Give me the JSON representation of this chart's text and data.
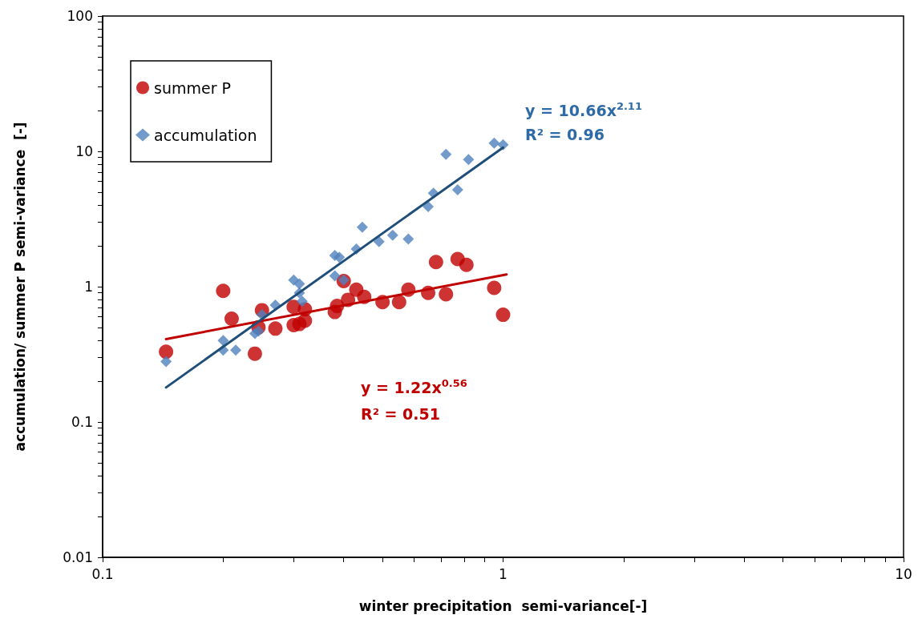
{
  "chart_data": {
    "type": "scatter",
    "xlabel": "winter precipitation  semi-variance[-]",
    "ylabel": "accumulation/ summer P semi-variance  [-]",
    "log": "xy",
    "grid": false,
    "legend": "top left",
    "xlim": [
      0.1,
      10
    ],
    "xticks": [
      0.1,
      1,
      10
    ],
    "ylim": [
      0.01,
      100
    ],
    "yticks": [
      0.01,
      0.1,
      1,
      10,
      100
    ],
    "series": [
      {
        "name": "summer P",
        "color": "#c00000",
        "marker": "circle",
        "x": [
          0.144,
          0.2,
          0.21,
          0.24,
          0.245,
          0.25,
          0.27,
          0.3,
          0.3,
          0.31,
          0.32,
          0.32,
          0.38,
          0.385,
          0.4,
          0.41,
          0.43,
          0.45,
          0.5,
          0.55,
          0.58,
          0.65,
          0.68,
          0.72,
          0.77,
          0.81,
          0.95,
          1.0
        ],
        "values": [
          0.33,
          0.93,
          0.58,
          0.32,
          0.5,
          0.67,
          0.49,
          0.71,
          0.52,
          0.53,
          0.56,
          0.68,
          0.65,
          0.72,
          1.1,
          0.8,
          0.95,
          0.84,
          0.77,
          0.77,
          0.95,
          0.9,
          1.52,
          0.88,
          1.6,
          1.45,
          0.98,
          0.62
        ]
      },
      {
        "name": "accumulation",
        "color": "#4f81bd",
        "marker": "diamond",
        "x": [
          0.144,
          0.2,
          0.2,
          0.215,
          0.24,
          0.245,
          0.25,
          0.27,
          0.3,
          0.31,
          0.31,
          0.315,
          0.38,
          0.39,
          0.38,
          0.4,
          0.43,
          0.445,
          0.49,
          0.53,
          0.58,
          0.65,
          0.67,
          0.72,
          0.77,
          0.82,
          0.95,
          1.0
        ],
        "values": [
          0.28,
          0.4,
          0.34,
          0.34,
          0.45,
          0.47,
          0.62,
          0.73,
          1.12,
          1.05,
          0.9,
          0.78,
          1.7,
          1.65,
          1.2,
          1.12,
          1.9,
          2.75,
          2.15,
          2.4,
          2.25,
          3.9,
          4.9,
          9.5,
          5.2,
          8.7,
          11.5,
          11.2
        ]
      },
      {
        "type": "line",
        "color": "#c00000",
        "marker": "none",
        "x": [
          0.144,
          1.02
        ],
        "values": [
          0.41,
          1.23
        ]
      },
      {
        "type": "line",
        "color": "#1f4e79",
        "marker": "none",
        "x": [
          0.144,
          1.0
        ],
        "values": [
          0.18,
          10.66
        ]
      }
    ],
    "annotations": [
      "y = 10.66x$^{2.11}$",
      "R² = 0.96",
      "y = 1.22x$^{0.56}$",
      "R² = 0.51"
    ]
  }
}
